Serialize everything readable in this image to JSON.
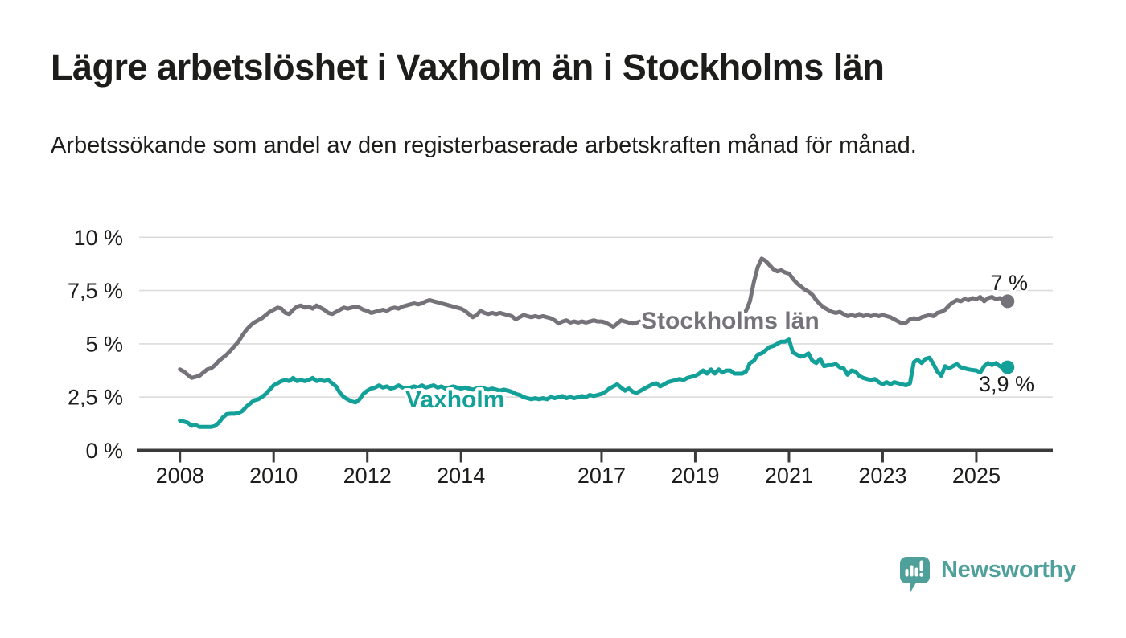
{
  "header": {
    "title": "Lägre arbetslöshet i Vaxholm än i Stockholms län",
    "subtitle": "Arbetssökande som andel av den registerbaserade arbetskraften månad för månad."
  },
  "footer": {
    "brand": "Newsworthy",
    "logo_icon": "speech-bubble-bar-chart-icon"
  },
  "colors": {
    "stockholm_line": "#757379",
    "vaxholm_line": "#12A098",
    "brand_teal": "#4FA09A",
    "grid": "#DCDCDC",
    "axis": "#3B3B3B",
    "text": "#1D1D1B"
  },
  "chart_data": {
    "type": "line",
    "x_unit": "months",
    "x_start_year": 2008,
    "x_step_months": 1,
    "x_end": "2025-09",
    "ylim": [
      0,
      10.5
    ],
    "grid": "horizontal",
    "legend_position": "inline-labels",
    "y_ticks": [
      {
        "value": 0,
        "label": "0 %"
      },
      {
        "value": 2.5,
        "label": "2,5 %"
      },
      {
        "value": 5,
        "label": "5 %"
      },
      {
        "value": 7.5,
        "label": "7,5 %"
      },
      {
        "value": 10,
        "label": "10 %"
      }
    ],
    "x_ticks": [
      {
        "value": 2008,
        "label": "2008"
      },
      {
        "value": 2010,
        "label": "2010"
      },
      {
        "value": 2012,
        "label": "2012"
      },
      {
        "value": 2014,
        "label": "2014"
      },
      {
        "value": 2017,
        "label": "2017"
      },
      {
        "value": 2019,
        "label": "2019"
      },
      {
        "value": 2021,
        "label": "2021"
      },
      {
        "value": 2023,
        "label": "2023"
      },
      {
        "value": 2025,
        "label": "2025"
      }
    ],
    "series": [
      {
        "name": "Stockholms län",
        "color": "#757379",
        "end_label": "7 %",
        "end_value": 7.0,
        "values": [
          3.8,
          3.7,
          3.55,
          3.4,
          3.45,
          3.5,
          3.65,
          3.8,
          3.85,
          4.0,
          4.2,
          4.35,
          4.5,
          4.7,
          4.9,
          5.1,
          5.4,
          5.65,
          5.85,
          6.0,
          6.1,
          6.2,
          6.35,
          6.5,
          6.6,
          6.7,
          6.65,
          6.45,
          6.4,
          6.6,
          6.75,
          6.8,
          6.7,
          6.75,
          6.65,
          6.8,
          6.7,
          6.6,
          6.45,
          6.4,
          6.5,
          6.6,
          6.7,
          6.65,
          6.7,
          6.75,
          6.7,
          6.6,
          6.55,
          6.45,
          6.5,
          6.55,
          6.6,
          6.55,
          6.65,
          6.7,
          6.65,
          6.75,
          6.8,
          6.85,
          6.9,
          6.85,
          6.9,
          7.0,
          7.05,
          7.0,
          6.95,
          6.9,
          6.85,
          6.8,
          6.75,
          6.7,
          6.65,
          6.55,
          6.4,
          6.25,
          6.35,
          6.55,
          6.45,
          6.4,
          6.45,
          6.4,
          6.45,
          6.4,
          6.35,
          6.3,
          6.15,
          6.25,
          6.35,
          6.3,
          6.25,
          6.3,
          6.25,
          6.3,
          6.25,
          6.2,
          6.1,
          5.95,
          6.05,
          6.1,
          6.0,
          6.05,
          6.0,
          6.05,
          6.0,
          6.05,
          6.1,
          6.05,
          6.05,
          6.0,
          5.9,
          5.8,
          5.95,
          6.1,
          6.05,
          6.0,
          5.95,
          6.0,
          6.05,
          6.0,
          6.05,
          6.1,
          6.0,
          5.95,
          6.0,
          6.05,
          6.0,
          5.95,
          6.0,
          5.95,
          6.0,
          6.05,
          6.0,
          5.95,
          6.0,
          6.05,
          6.0,
          6.1,
          6.15,
          6.1,
          6.05,
          6.1,
          6.2,
          6.3,
          6.4,
          6.55,
          7.0,
          7.9,
          8.6,
          9.0,
          8.9,
          8.7,
          8.5,
          8.4,
          8.45,
          8.35,
          8.3,
          8.05,
          7.85,
          7.7,
          7.55,
          7.45,
          7.3,
          7.05,
          6.85,
          6.7,
          6.6,
          6.5,
          6.45,
          6.5,
          6.4,
          6.3,
          6.35,
          6.3,
          6.4,
          6.3,
          6.35,
          6.3,
          6.35,
          6.3,
          6.35,
          6.3,
          6.25,
          6.15,
          6.05,
          5.95,
          6.0,
          6.15,
          6.2,
          6.15,
          6.25,
          6.3,
          6.35,
          6.3,
          6.45,
          6.5,
          6.6,
          6.8,
          6.95,
          7.05,
          7.0,
          7.1,
          7.05,
          7.15,
          7.1,
          7.2,
          7.0,
          7.15,
          7.2,
          7.1,
          7.15,
          7.05,
          7.0
        ]
      },
      {
        "name": "Vaxholm",
        "color": "#12A098",
        "end_label": "3,9 %",
        "end_value": 3.9,
        "values": [
          1.4,
          1.35,
          1.3,
          1.15,
          1.2,
          1.1,
          1.1,
          1.1,
          1.1,
          1.15,
          1.3,
          1.55,
          1.7,
          1.72,
          1.72,
          1.75,
          1.85,
          2.05,
          2.2,
          2.35,
          2.4,
          2.5,
          2.65,
          2.85,
          3.05,
          3.15,
          3.25,
          3.3,
          3.25,
          3.4,
          3.25,
          3.3,
          3.25,
          3.3,
          3.4,
          3.25,
          3.3,
          3.25,
          3.3,
          3.15,
          3.0,
          2.7,
          2.5,
          2.4,
          2.3,
          2.25,
          2.4,
          2.65,
          2.8,
          2.9,
          2.95,
          3.05,
          2.95,
          3.0,
          2.9,
          2.95,
          3.05,
          2.95,
          2.9,
          2.95,
          3.0,
          2.95,
          3.05,
          2.95,
          3.0,
          3.05,
          2.95,
          3.0,
          2.9,
          2.95,
          3.0,
          2.95,
          2.9,
          2.95,
          2.9,
          2.85,
          2.9,
          2.95,
          2.9,
          2.85,
          2.9,
          2.85,
          2.8,
          2.85,
          2.8,
          2.75,
          2.65,
          2.6,
          2.5,
          2.45,
          2.4,
          2.45,
          2.4,
          2.45,
          2.4,
          2.5,
          2.45,
          2.5,
          2.55,
          2.45,
          2.5,
          2.45,
          2.5,
          2.55,
          2.5,
          2.6,
          2.55,
          2.6,
          2.65,
          2.75,
          2.9,
          3.0,
          3.1,
          2.95,
          2.8,
          2.9,
          2.75,
          2.7,
          2.8,
          2.9,
          3.0,
          3.1,
          3.15,
          3.0,
          3.1,
          3.2,
          3.25,
          3.3,
          3.35,
          3.3,
          3.4,
          3.45,
          3.5,
          3.6,
          3.75,
          3.6,
          3.8,
          3.6,
          3.8,
          3.65,
          3.75,
          3.75,
          3.6,
          3.6,
          3.6,
          3.7,
          4.1,
          4.2,
          4.5,
          4.55,
          4.7,
          4.85,
          4.9,
          5.0,
          5.1,
          5.1,
          5.2,
          4.6,
          4.5,
          4.4,
          4.45,
          4.55,
          4.2,
          4.1,
          4.3,
          3.95,
          4.0,
          4.0,
          4.05,
          3.9,
          3.85,
          3.55,
          3.75,
          3.7,
          3.5,
          3.4,
          3.35,
          3.3,
          3.35,
          3.2,
          3.1,
          3.2,
          3.1,
          3.2,
          3.15,
          3.1,
          3.05,
          3.15,
          4.15,
          4.25,
          4.1,
          4.3,
          4.35,
          4.05,
          3.7,
          3.5,
          3.95,
          3.85,
          3.95,
          4.05,
          3.9,
          3.85,
          3.8,
          3.77,
          3.75,
          3.65,
          3.95,
          4.1,
          4.0,
          4.1,
          3.95,
          3.85,
          3.9
        ]
      }
    ]
  }
}
